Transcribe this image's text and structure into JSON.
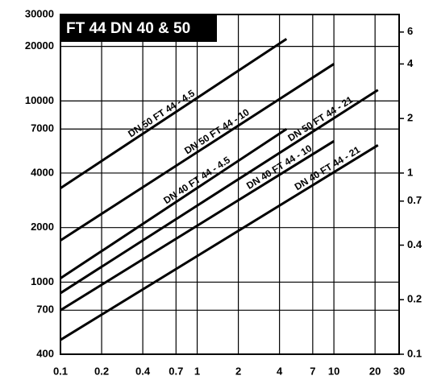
{
  "chart_data": {
    "type": "line",
    "title": "FT 44 DN 40 & 50",
    "log_x": true,
    "log_y": true,
    "grid": true,
    "xlim": [
      0.1,
      30
    ],
    "xticks": [
      0.1,
      0.2,
      0.4,
      0.7,
      1,
      2,
      4,
      7,
      10,
      20,
      30
    ],
    "ylim": [
      400,
      30000
    ],
    "yticks": [
      400,
      700,
      1000,
      2000,
      4000,
      7000,
      10000,
      20000,
      30000
    ],
    "y2lim": [
      0.1,
      7.5
    ],
    "y2ticks": [
      0.1,
      0.2,
      0.4,
      0.7,
      1,
      2,
      4,
      6
    ],
    "series": [
      {
        "name": "DN 50 FT 44 - 4.5",
        "color": "#000000",
        "x": [
          0.1,
          4.5
        ],
        "values": [
          3300,
          22000
        ]
      },
      {
        "name": "DN 50 FT 44 - 10",
        "color": "#000000",
        "x": [
          0.1,
          10
        ],
        "values": [
          1700,
          16000
        ]
      },
      {
        "name": "DN 40 FT 44 - 4.5",
        "color": "#000000",
        "x": [
          0.1,
          4.5
        ],
        "values": [
          1050,
          7000
        ]
      },
      {
        "name": "DN 50 FT 44 - 21",
        "color": "#000000",
        "x": [
          0.1,
          21
        ],
        "values": [
          870,
          11500
        ]
      },
      {
        "name": "DN 40 FT 44 - 10",
        "color": "#000000",
        "x": [
          0.1,
          10
        ],
        "values": [
          700,
          6000
        ]
      },
      {
        "name": "DN 40 FT 44 - 21",
        "color": "#000000",
        "x": [
          0.1,
          21
        ],
        "values": [
          480,
          5700
        ]
      }
    ]
  }
}
